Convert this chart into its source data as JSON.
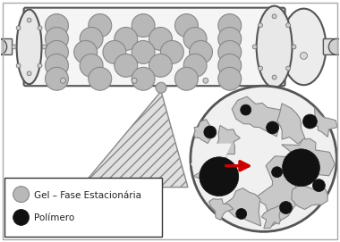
{
  "background_color": "#ffffff",
  "legend_items": [
    {
      "label": "Gel – Fase Estacionária",
      "color": "#c8c8c8"
    },
    {
      "label": "Polímero",
      "color": "#111111"
    }
  ],
  "bead_color": "#b8b8b8",
  "bead_edge": "#888888",
  "column_face": "#f5f5f5",
  "column_edge": "#555555",
  "zoom_face": "#f0f0f0",
  "zoom_edge": "#555555",
  "blob_face": "#c8c8c8",
  "blob_edge": "#888888",
  "arrow_color": "#cc0000",
  "tri_face": "#e0e0e0",
  "tri_edge": "#888888",
  "big_arrow_face": "#f0f0f0",
  "big_arrow_edge": "#888888"
}
